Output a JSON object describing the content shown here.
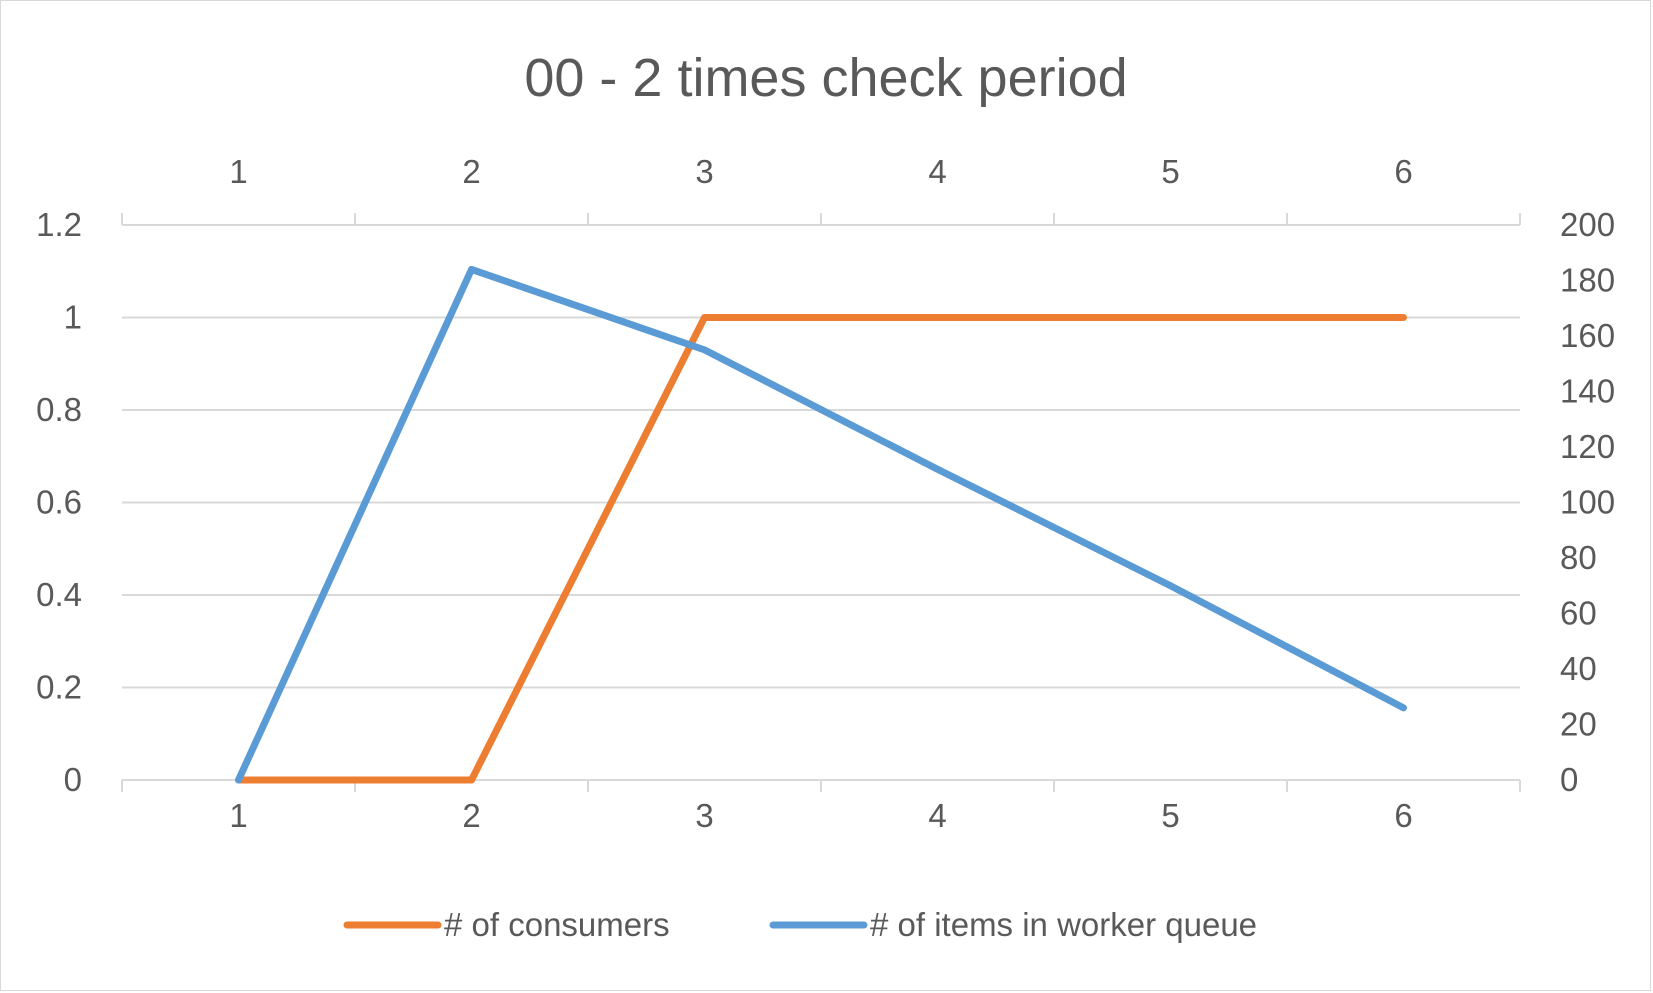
{
  "chart_data": {
    "type": "line",
    "title": "00 - 2 times check period",
    "categories": [
      "1",
      "2",
      "3",
      "4",
      "5",
      "6"
    ],
    "grid": true,
    "legend_position": "bottom",
    "primary_y": {
      "ylim": [
        0,
        1.2
      ],
      "ticks": [
        "0",
        "0.2",
        "0.4",
        "0.6",
        "0.8",
        "1",
        "1.2"
      ]
    },
    "secondary_y": {
      "ylim": [
        0,
        200
      ],
      "ticks": [
        "0",
        "20",
        "40",
        "60",
        "80",
        "100",
        "120",
        "140",
        "160",
        "180",
        "200"
      ]
    },
    "series": [
      {
        "name": "# of consumers",
        "axis": "primary",
        "color": "#ED7D31",
        "values": [
          0,
          0,
          1,
          1,
          1,
          1
        ]
      },
      {
        "name": "# of items in worker queue",
        "axis": "secondary",
        "color": "#5B9BD5",
        "values": [
          0,
          184,
          155,
          112,
          70,
          26
        ]
      }
    ]
  }
}
